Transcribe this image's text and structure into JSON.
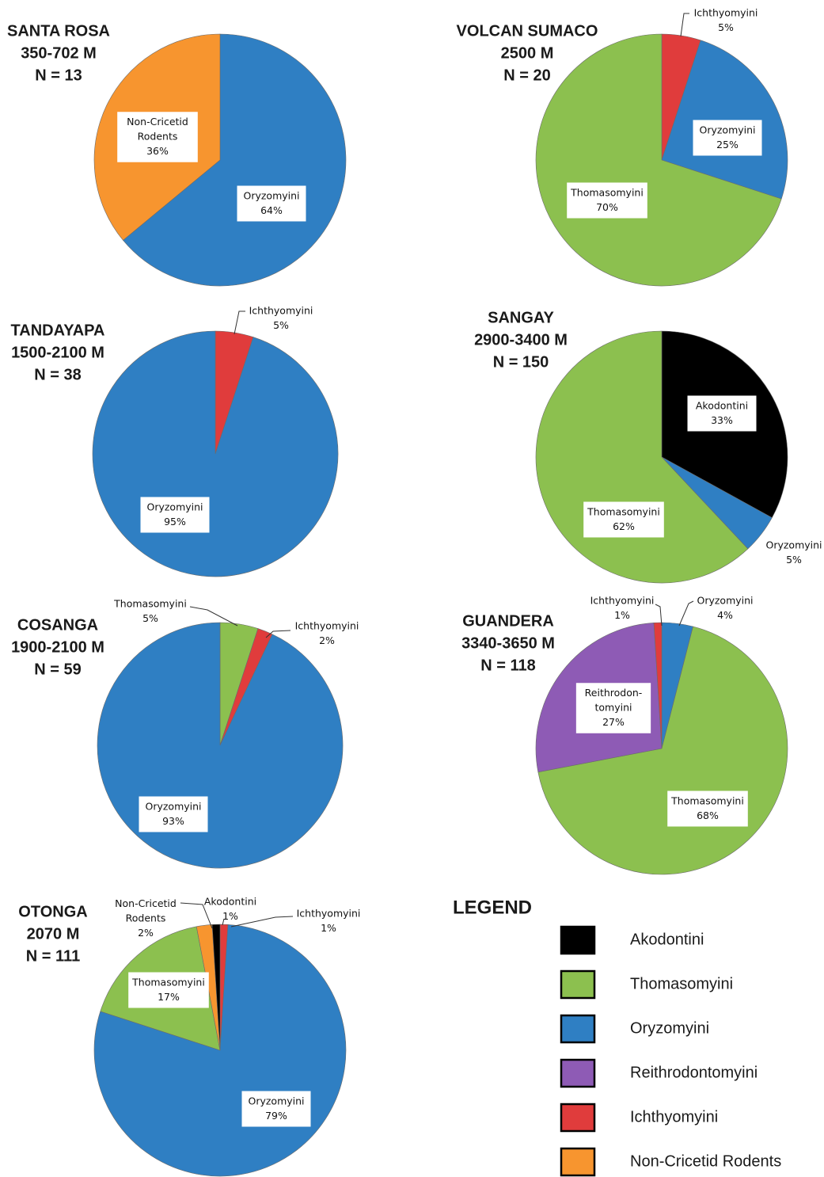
{
  "colors": {
    "Akodontini": "#000000",
    "Thomasomyini": "#8cc04f",
    "Oryzomyini": "#2f7fc3",
    "Reithrodontomyini": "#8e5bb5",
    "Ichthyomyini": "#e03c3c",
    "Non-Cricetid Rodents": "#f7952f"
  },
  "chart_data": [
    {
      "type": "pie",
      "title_lines": [
        "SANTA ROSA",
        "350-702 M",
        "N = 13"
      ],
      "slices": [
        {
          "category": "Oryzomyini",
          "label_lines": [
            "Oryzomyini",
            "64%"
          ],
          "value": 64
        },
        {
          "category": "Non-Cricetid Rodents",
          "label_lines": [
            "Non-Cricetid",
            "Rodents",
            "36%"
          ],
          "value": 36
        }
      ]
    },
    {
      "type": "pie",
      "title_lines": [
        "VOLCAN SUMACO",
        "2500 M",
        "N = 20"
      ],
      "slices": [
        {
          "category": "Oryzomyini",
          "label_lines": [
            "Oryzomyini",
            "25%"
          ],
          "value": 25
        },
        {
          "category": "Thomasomyini",
          "label_lines": [
            "Thomasomyini",
            "70%"
          ],
          "value": 70
        },
        {
          "category": "Ichthyomyini",
          "label_lines": [
            "Ichthyomyini",
            "5%"
          ],
          "value": 5
        }
      ]
    },
    {
      "type": "pie",
      "title_lines": [
        "TANDAYAPA",
        "1500-2100 M",
        "N = 38"
      ],
      "slices": [
        {
          "category": "Ichthyomyini",
          "label_lines": [
            "Ichthyomyini",
            "5%"
          ],
          "value": 5
        },
        {
          "category": "Oryzomyini",
          "label_lines": [
            "Oryzomyini",
            "95%"
          ],
          "value": 95
        }
      ]
    },
    {
      "type": "pie",
      "title_lines": [
        "SANGAY",
        "2900-3400 M",
        "N = 150"
      ],
      "slices": [
        {
          "category": "Akodontini",
          "label_lines": [
            "Akodontini",
            "33%"
          ],
          "value": 33
        },
        {
          "category": "Oryzomyini",
          "label_lines": [
            "Oryzomyini",
            "5%"
          ],
          "value": 5
        },
        {
          "category": "Thomasomyini",
          "label_lines": [
            "Thomasomyini",
            "62%"
          ],
          "value": 62
        }
      ]
    },
    {
      "type": "pie",
      "title_lines": [
        "COSANGA",
        "1900-2100 M",
        "N =  59"
      ],
      "slices": [
        {
          "category": "Thomasomyini",
          "label_lines": [
            "Thomasomyini",
            "5%"
          ],
          "value": 5
        },
        {
          "category": "Ichthyomyini",
          "label_lines": [
            "Ichthyomyini",
            "2%"
          ],
          "value": 2
        },
        {
          "category": "Oryzomyini",
          "label_lines": [
            "Oryzomyini",
            "93%"
          ],
          "value": 93
        }
      ]
    },
    {
      "type": "pie",
      "title_lines": [
        "GUANDERA",
        "3340-3650 M",
        "N = 118"
      ],
      "slices": [
        {
          "category": "Oryzomyini",
          "label_lines": [
            "Oryzomyini",
            "4%"
          ],
          "value": 4
        },
        {
          "category": "Thomasomyini",
          "label_lines": [
            "Thomasomyini",
            "68%"
          ],
          "value": 68
        },
        {
          "category": "Reithrodontomyini",
          "label_lines": [
            "Reithrodon-",
            "tomyini",
            "27%"
          ],
          "value": 27
        },
        {
          "category": "Ichthyomyini",
          "label_lines": [
            "Ichthyomyini",
            "1%"
          ],
          "value": 1
        }
      ]
    },
    {
      "type": "pie",
      "title_lines": [
        "OTONGA",
        "2070 M",
        "N = 111"
      ],
      "slices": [
        {
          "category": "Ichthyomyini",
          "label_lines": [
            "Ichthyomyini",
            "1%"
          ],
          "value": 1
        },
        {
          "category": "Oryzomyini",
          "label_lines": [
            "Oryzomyini",
            "79%"
          ],
          "value": 79
        },
        {
          "category": "Thomasomyini",
          "label_lines": [
            "Thomasomyini",
            "17%"
          ],
          "value": 17
        },
        {
          "category": "Non-Cricetid Rodents",
          "label_lines": [
            "Non-Cricetid",
            "Rodents",
            "2%"
          ],
          "value": 2
        },
        {
          "category": "Akodontini",
          "label_lines": [
            "Akodontini",
            "1%"
          ],
          "value": 1
        }
      ]
    }
  ],
  "legend": {
    "title": "LEGEND",
    "items": [
      {
        "label": "Akodontini",
        "category": "Akodontini"
      },
      {
        "label": "Thomasomyini",
        "category": "Thomasomyini"
      },
      {
        "label": "Oryzomyini",
        "category": "Oryzomyini"
      },
      {
        "label": "Reithrodontomyini",
        "category": "Reithrodontomyini"
      },
      {
        "label": "Ichthyomyini",
        "category": "Ichthyomyini"
      },
      {
        "label": "Non-Cricetid Rodents",
        "category": "Non-Cricetid Rodents"
      }
    ]
  }
}
